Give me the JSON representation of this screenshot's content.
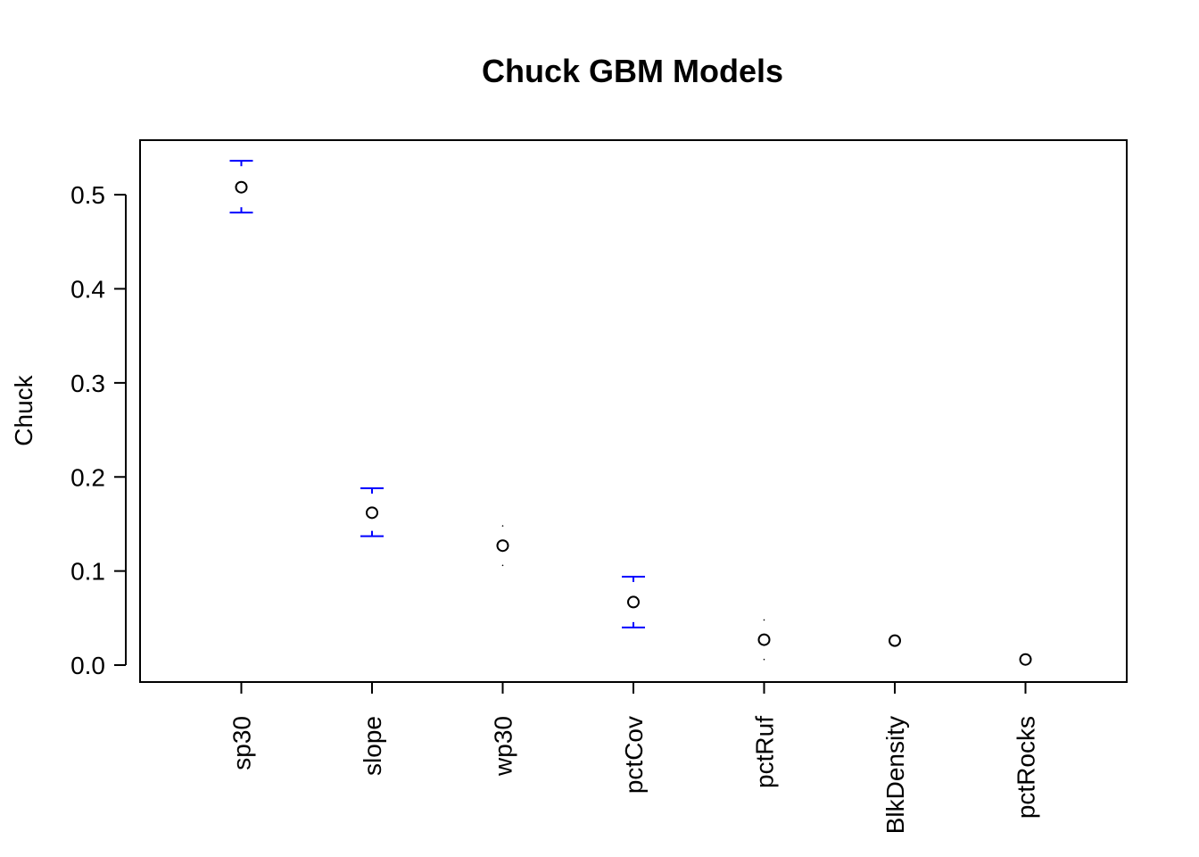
{
  "chart_data": {
    "type": "scatter",
    "title": "Chuck GBM Models",
    "xlabel": "",
    "ylabel": "Chuck",
    "categories": [
      "sp30",
      "slope",
      "wp30",
      "pctCov",
      "pctRuf",
      "BlkDensity",
      "pctRocks"
    ],
    "values": [
      0.508,
      0.162,
      0.127,
      0.067,
      0.027,
      0.026,
      0.006
    ],
    "error_upper": [
      0.536,
      0.188,
      0.148,
      0.094,
      0.048,
      0.026,
      0.006
    ],
    "error_lower": [
      0.481,
      0.137,
      0.106,
      0.04,
      0.006,
      0.026,
      0.006
    ],
    "ylim": [
      -0.018,
      0.558
    ],
    "yticks": [
      0.0,
      0.1,
      0.2,
      0.3,
      0.4,
      0.5
    ],
    "ytick_labels": [
      "0.0",
      "0.1",
      "0.2",
      "0.3",
      "0.4",
      "0.5"
    ],
    "grid": false,
    "legend": "none",
    "colors": {
      "points": "#000000",
      "error_bars": "#0000ff",
      "frame": "#000000"
    }
  }
}
